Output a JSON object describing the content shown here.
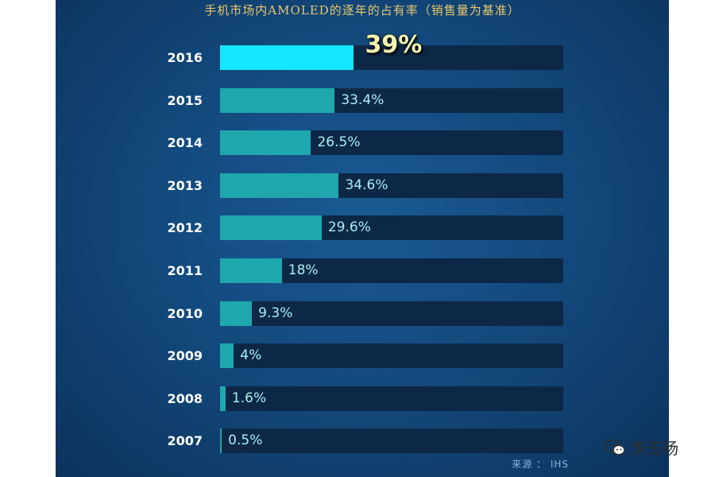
{
  "title": "手机市场内AMOLED的逐年的占有率（销售量为基准）",
  "source": "来源 ： IHS",
  "watermark": {
    "text": "李玉杨",
    "icon": "wechat-icon"
  },
  "colors": {
    "background": "#134a7e",
    "track": "#0d2847",
    "bar": "#1fa7ae",
    "bar_highlight": "#15e6ff",
    "title": "#e9c76a"
  },
  "chart_data": {
    "type": "bar",
    "orientation": "horizontal",
    "title": "手机市场内AMOLED的逐年的占有率（销售量为基准）",
    "categories": [
      "2016",
      "2015",
      "2014",
      "2013",
      "2012",
      "2011",
      "2010",
      "2009",
      "2008",
      "2007"
    ],
    "values": [
      39,
      33.4,
      26.5,
      34.6,
      29.6,
      18,
      9.3,
      4,
      1.6,
      0.5
    ],
    "value_labels": [
      "39%",
      "33.4%",
      "26.5%",
      "34.6%",
      "29.6%",
      "18%",
      "9.3%",
      "4%",
      "1.6%",
      "0.5%"
    ],
    "unit": "%",
    "highlight_category": "2016",
    "xlim": [
      0,
      100
    ],
    "grid": false,
    "legend": "none"
  }
}
